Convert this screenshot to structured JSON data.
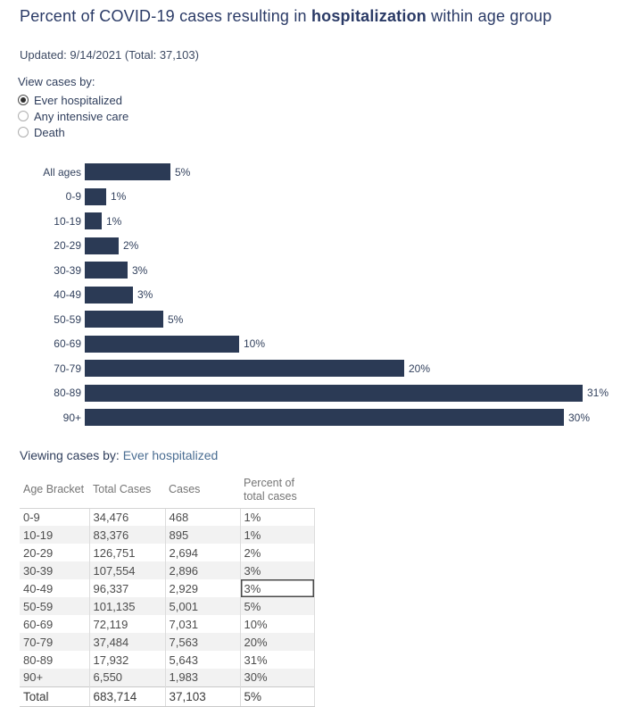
{
  "header": {
    "title_prefix": "Percent of COVID-19 cases resulting in ",
    "title_bold": "hospitalization",
    "title_suffix": " within age group",
    "updated": "Updated: 9/14/2021 (Total: 37,103)"
  },
  "controls": {
    "label": "View cases by:",
    "options": [
      {
        "label": "Ever hospitalized",
        "selected": true
      },
      {
        "label": "Any intensive care",
        "selected": false
      },
      {
        "label": "Death",
        "selected": false
      }
    ]
  },
  "chart_data": {
    "type": "bar",
    "orientation": "horizontal",
    "title": "Percent of COVID-19 cases resulting in hospitalization within age group",
    "xlabel": "",
    "ylabel": "",
    "grid": false,
    "legend": false,
    "xlim": [
      0,
      33.5
    ],
    "bar_color": "#2b3a55",
    "categories": [
      "All ages",
      "0-9",
      "10-19",
      "20-29",
      "30-39",
      "40-49",
      "50-59",
      "60-69",
      "70-79",
      "80-89",
      "90+"
    ],
    "values_percent": [
      5.43,
      1.36,
      1.07,
      2.13,
      2.69,
      3.04,
      4.94,
      9.75,
      20.17,
      31.47,
      30.27
    ],
    "value_labels": [
      "5%",
      "1%",
      "1%",
      "2%",
      "3%",
      "3%",
      "5%",
      "10%",
      "20%",
      "31%",
      "30%"
    ]
  },
  "viewing": {
    "label": "Viewing cases by:",
    "value": "Ever hospitalized"
  },
  "table": {
    "columns": [
      "Age Bracket",
      "Total Cases",
      "Cases",
      "Percent of total cases"
    ],
    "rows": [
      [
        "0-9",
        "34,476",
        "468",
        "1%"
      ],
      [
        "10-19",
        "83,376",
        "895",
        "1%"
      ],
      [
        "20-29",
        "126,751",
        "2,694",
        "2%"
      ],
      [
        "30-39",
        "107,554",
        "2,896",
        "3%"
      ],
      [
        "40-49",
        "96,337",
        "2,929",
        "3%"
      ],
      [
        "50-59",
        "101,135",
        "5,001",
        "5%"
      ],
      [
        "60-69",
        "72,119",
        "7,031",
        "10%"
      ],
      [
        "70-79",
        "37,484",
        "7,563",
        "20%"
      ],
      [
        "80-89",
        "17,932",
        "5,643",
        "31%"
      ],
      [
        "90+",
        "6,550",
        "1,983",
        "30%"
      ],
      [
        "Total",
        "683,714",
        "37,103",
        "5%"
      ]
    ],
    "focused_cell": {
      "row": "40-49",
      "column": "Percent of total cases"
    }
  },
  "colors": {
    "title_navy": "#2a3a66",
    "body_navy": "#2f3e5c",
    "bar_navy": "#2b3a55",
    "viewing_value_blue": "#4a6d92",
    "table_header_gray": "#757575",
    "table_text_gray": "#4d4d4d",
    "alt_row_bg": "#f2f2f2"
  }
}
